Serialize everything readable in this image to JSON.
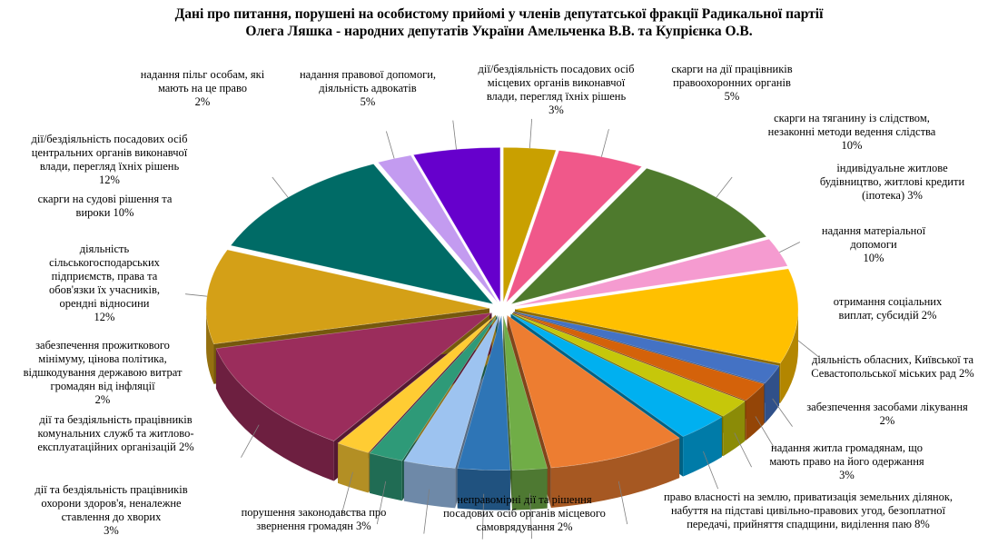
{
  "chart_data": {
    "type": "pie",
    "title_line1": "Дані про питання, порушені на особистому прийомі у членів депутатської фракції Радикальної партії",
    "title_line2": "Олега Ляшка - народних депутатів України Амельченка В.В. та Купрієнка О.В.",
    "slices": [
      {
        "label": "дії/бездіяльність посадових осіб\nмісцевих органів виконавчої\nвлади, перегляд їхніх рішень",
        "pct_text": "3%",
        "value": 3,
        "color": "#c9a000"
      },
      {
        "label": "скарги на дії працівників\nправоохоронних органів",
        "pct_text": "5%",
        "value": 5,
        "color": "#f0588a"
      },
      {
        "label": "скарги на тяганину із слідством,\nнезаконні методи ведення слідства",
        "pct_text": "10%",
        "value": 10,
        "color": "#4e7a2d"
      },
      {
        "label": "індивідуальне житлове\nбудівництво, житлові кредити\n(іпотека) 3%",
        "pct_text": "",
        "value": 3,
        "color": "#f59bd0"
      },
      {
        "label": "надання матеріальної\nдопомоги",
        "pct_text": "10%",
        "value": 10,
        "color": "#ffc000"
      },
      {
        "label": "отримання соціальних\nвиплат, субсидій 2%",
        "pct_text": "",
        "value": 2,
        "color": "#4472c4"
      },
      {
        "label": "діяльність обласних, Київської та\nСевастопольської міських рад 2%",
        "pct_text": "",
        "value": 2,
        "color": "#d4620a"
      },
      {
        "label": "забезпечення засобами лікування",
        "pct_text": "2%",
        "value": 2,
        "color": "#c6c70a"
      },
      {
        "label": "надання житла громадянам, що\nмають право на його одержання",
        "pct_text": "3%",
        "value": 3,
        "color": "#00b0f0"
      },
      {
        "label": "право власності на землю, приватизація земельних ділянок,\nнабуття на підставі цивільно-правових угод, безоплатної\nпередачі, прийняття спадщини, виділення паю 8%",
        "pct_text": "",
        "value": 8,
        "color": "#ed7d31"
      },
      {
        "label": "неправомірні дії та рішення\nпосадових осіб органів місцевого\nсамоврядування 2%",
        "pct_text": "",
        "value": 2,
        "color": "#70ad47"
      },
      {
        "label": "порушення законодавства про\nзвернення громадян 3%",
        "pct_text": "",
        "value": 3,
        "color": "#2e75b6"
      },
      {
        "label": "дії та бездіяльність працівників\nохорони здоров'я, неналежне\nставлення до хворих",
        "pct_text": "3%",
        "value": 3,
        "color": "#9dc3f0"
      },
      {
        "label": "дії та бездіяльність працівників\nкомунальних служб та житлово-\nексплуатаційних організацій 2%",
        "pct_text": "",
        "value": 2,
        "color": "#2e9a78"
      },
      {
        "label": "забезпечення прожиткового\nмінімуму, цінова політика,\nвідшкодування державою витрат\nгромадян від інфляції",
        "pct_text": "2%",
        "value": 2,
        "color": "#ffcc33"
      },
      {
        "label": "діяльність\nсільськогосподарських\nпідприємств, права та\nобов'язки їх учасників,\nорендні відносини",
        "pct_text": "12%",
        "value": 12,
        "color": "#9b2d5c"
      },
      {
        "label": "скарги на судові рішення та\nвироки 10%",
        "pct_text": "",
        "value": 10,
        "color": "#d4a017"
      },
      {
        "label": "дії/бездіяльність посадових осіб\nцентральних органів виконавчої\nвлади, перегляд їхніх рішень",
        "pct_text": "12%",
        "value": 12,
        "color": "#006b66"
      },
      {
        "label": "надання пільг особам, які\nмають на це право",
        "pct_text": "2%",
        "value": 2,
        "color": "#c39bf0"
      },
      {
        "label": "надання правової допомоги,\nдіяльність адвокатів",
        "pct_text": "5%",
        "value": 5,
        "color": "#6600cc"
      }
    ]
  }
}
